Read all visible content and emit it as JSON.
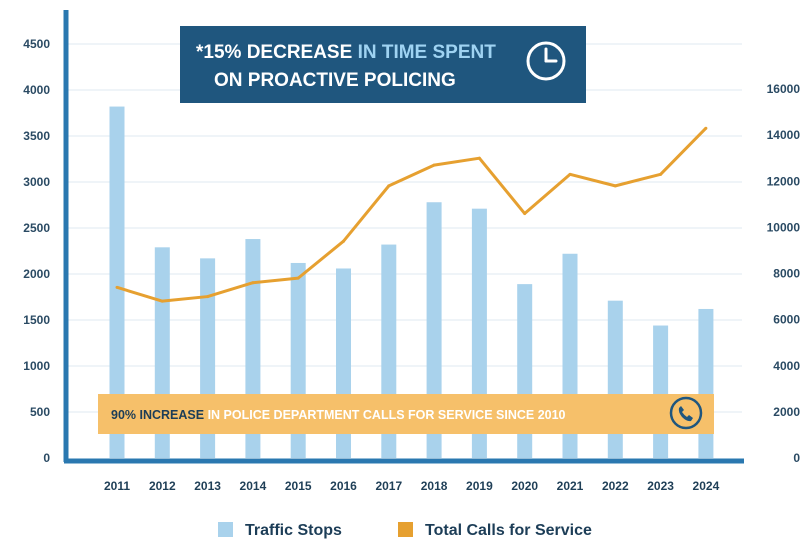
{
  "chart_data": {
    "type": "bar",
    "categories": [
      "2011",
      "2012",
      "2013",
      "2014",
      "2015",
      "2016",
      "2017",
      "2018",
      "2019",
      "2020",
      "2021",
      "2022",
      "2023",
      "2024"
    ],
    "series": [
      {
        "name": "Traffic Stops",
        "type": "bar",
        "axis": "left",
        "color": "#a9d2ec",
        "values": [
          3820,
          2290,
          2170,
          2380,
          2120,
          2060,
          2320,
          2780,
          2710,
          1890,
          2220,
          1710,
          1440,
          1620
        ]
      },
      {
        "name": "Total Calls for Service",
        "type": "line",
        "axis": "right",
        "color": "#e6a030",
        "values": [
          7400,
          6800,
          7000,
          7600,
          7800,
          9400,
          11800,
          12700,
          13000,
          10600,
          12300,
          11800,
          12300,
          14300
        ]
      }
    ],
    "left_axis": {
      "ylim": [
        0,
        4500
      ],
      "ticks": [
        "0",
        "500",
        "1000",
        "1500",
        "2000",
        "2500",
        "3000",
        "3500",
        "4000",
        "4500"
      ]
    },
    "right_axis": {
      "ylim": [
        0,
        18000
      ],
      "ticks": [
        "0",
        "2000",
        "4000",
        "6000",
        "8000",
        "10000",
        "12000",
        "14000",
        "16000"
      ]
    },
    "grid": true,
    "legend_position": "bottom",
    "annotations": {
      "top_callout": {
        "highlight": "*15% DECREASE",
        "text_line1": "IN TIME SPENT",
        "text_line2": "ON PROACTIVE POLICING",
        "icon": "clock-icon",
        "bg_color": "#1f567e"
      },
      "bottom_callout": {
        "highlight": "90% INCREASE",
        "text": "IN POLICE DEPARTMENT CALLS FOR SERVICE SINCE 2010",
        "icon": "phone-icon",
        "bg_color": "#f6c06a"
      }
    },
    "colors": {
      "axis": "#2a78b0",
      "grid": "#dfe9f1",
      "text": "#1f3f57"
    }
  }
}
